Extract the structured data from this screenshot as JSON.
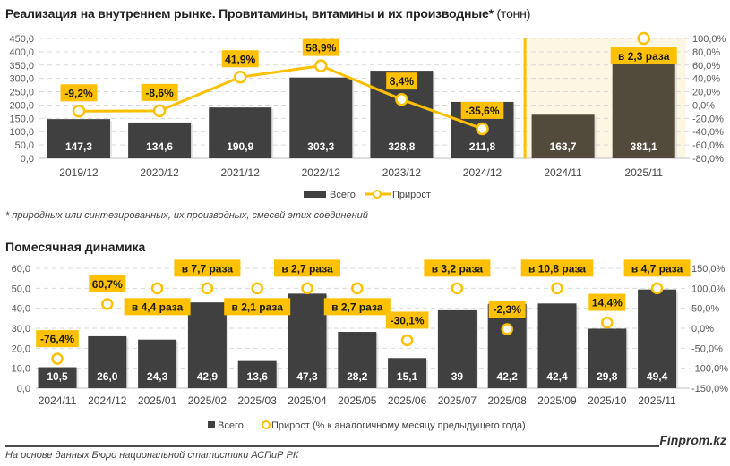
{
  "header": {
    "title": "Реализация на внутреннем рынке. Провитамины, витамины и их производные*",
    "unit": " (тонн)"
  },
  "footnote": "* природных или синтезированных, их производных, смесей этих соединений",
  "subtitle": "Помесячная динамика",
  "source": "На основе данных Бюро национальной статистики АСПиР РК",
  "brand": "Finprom.kz",
  "colors": {
    "bar": "#404040",
    "bar_highlight": "#524a3a",
    "highlight_bg": "#fdf6e3",
    "accent": "#ffc000",
    "grid": "#d9d9d9"
  },
  "chart_data": [
    {
      "type": "bar",
      "title": "Реализация на внутреннем рынке. Провитамины, витамины и их производные* (тонн)",
      "categories": [
        "2019/12",
        "2020/12",
        "2021/12",
        "2022/12",
        "2023/12",
        "2024/12",
        "2024/11",
        "2025/11"
      ],
      "highlighted_categories": [
        "2024/11",
        "2025/11"
      ],
      "series": [
        {
          "name": "Всего",
          "type": "bar",
          "axis": "left",
          "values": [
            147.3,
            134.6,
            190.9,
            303.3,
            328.8,
            211.8,
            163.7,
            381.1
          ],
          "labels": [
            "147,3",
            "134,6",
            "190,9",
            "303,3",
            "328,8",
            "211,8",
            "163,7",
            "381,1"
          ]
        },
        {
          "name": "Прирост",
          "type": "line",
          "axis": "right",
          "values": [
            -9.2,
            -8.6,
            41.9,
            58.9,
            8.4,
            -35.6,
            null,
            100.0
          ],
          "labels": [
            "-9,2%",
            "-8,6%",
            "41,9%",
            "58,9%",
            "8,4%",
            "-35,6%",
            "",
            "в 2,3 раза"
          ],
          "connected_through": "2024/12"
        }
      ],
      "left_axis": {
        "min": 0,
        "max": 450,
        "step": 50,
        "ticks": [
          "0,0",
          "50,0",
          "100,0",
          "150,0",
          "200,0",
          "250,0",
          "300,0",
          "350,0",
          "400,0",
          "450,0"
        ]
      },
      "right_axis": {
        "min": -80,
        "max": 100,
        "step": 20,
        "ticks": [
          "-80,0%",
          "-60,0%",
          "-40,0%",
          "-20,0%",
          "0,0%",
          "20,0%",
          "40,0%",
          "60,0%",
          "80,0%",
          "100,0%"
        ]
      },
      "legend": {
        "placement": "bottom-center",
        "entries": [
          "Всего",
          "Прирост"
        ]
      },
      "grid": true
    },
    {
      "type": "bar",
      "title": "Помесячная динамика",
      "categories": [
        "2024/11",
        "2024/12",
        "2025/01",
        "2025/02",
        "2025/03",
        "2025/04",
        "2025/05",
        "2025/06",
        "2025/07",
        "2025/08",
        "2025/09",
        "2025/10",
        "2025/11"
      ],
      "series": [
        {
          "name": "Всего",
          "type": "bar",
          "axis": "left",
          "values": [
            10.5,
            26.0,
            24.3,
            42.9,
            13.6,
            47.3,
            28.2,
            15.1,
            39,
            42.2,
            42.4,
            29.8,
            49.4
          ],
          "labels": [
            "10,5",
            "26,0",
            "24,3",
            "42,9",
            "13,6",
            "47,3",
            "28,2",
            "15,1",
            "39",
            "42,2",
            "42,4",
            "29,8",
            "49,4"
          ]
        },
        {
          "name": "Прирост (% к аналогичному месяцу предыдущего года)",
          "type": "scatter",
          "axis": "right",
          "values": [
            -76.4,
            60.7,
            100.0,
            100.0,
            100.0,
            100.0,
            100.0,
            -30.1,
            100.0,
            -2.3,
            100.0,
            14.4,
            100.0
          ],
          "labels": [
            "-76,4%",
            "60,7%",
            "в 4,4 раза",
            "в 7,7 раза",
            "в 2,1 раза",
            "в 2,7 раза",
            "в 2,7 раза",
            "-30,1%",
            "в 3,2 раза",
            "-2,3%",
            "в 10,8 раза",
            "14,4%",
            "в 4,7 раза"
          ],
          "label_position": [
            "above",
            "above",
            "below",
            "above",
            "below",
            "above",
            "below",
            "above",
            "above",
            "above",
            "above",
            "above",
            "above"
          ]
        }
      ],
      "left_axis": {
        "min": 0,
        "max": 60,
        "step": 10,
        "ticks": [
          "0,0",
          "10,0",
          "20,0",
          "30,0",
          "40,0",
          "50,0",
          "60,0"
        ]
      },
      "right_axis": {
        "min": -150,
        "max": 150,
        "step": 50,
        "ticks": [
          "-150,0%",
          "-100,0%",
          "-50,0%",
          "0,0%",
          "50,0%",
          "100,0%",
          "150,0%"
        ]
      },
      "legend": {
        "placement": "bottom-center",
        "entries": [
          "Всего",
          "Прирост (% к аналогичному месяцу предыдущего года)"
        ]
      },
      "grid": true
    }
  ]
}
